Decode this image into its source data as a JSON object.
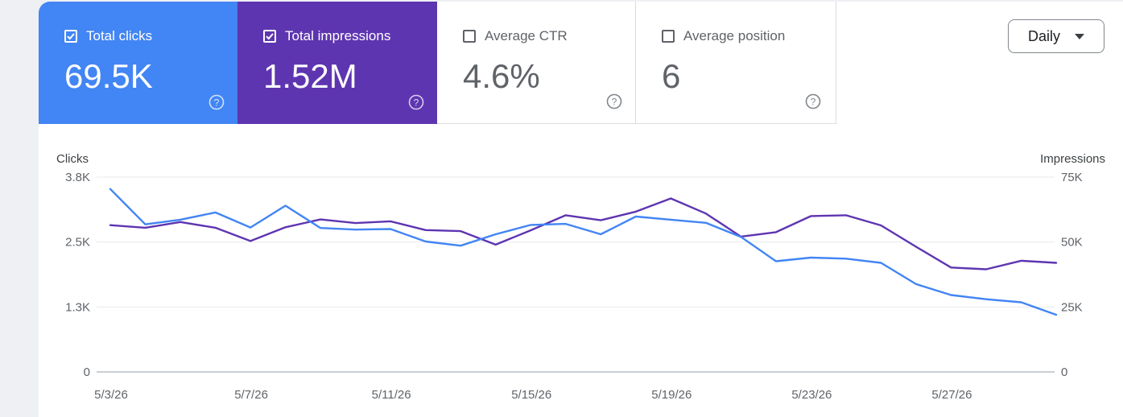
{
  "metrics": [
    {
      "label": "Total clicks",
      "value": "69.5K",
      "checked": true,
      "color": "#4285f4"
    },
    {
      "label": "Total impressions",
      "value": "1.52M",
      "checked": true,
      "color": "#5e35b1"
    },
    {
      "label": "Average CTR",
      "value": "4.6%",
      "checked": false,
      "color": "#ffffff"
    },
    {
      "label": "Average position",
      "value": "6",
      "checked": false,
      "color": "#ffffff"
    }
  ],
  "granularity": {
    "selected": "Daily"
  },
  "chart_data": {
    "type": "line",
    "x": [
      "5/3/26",
      "5/4/26",
      "5/5/26",
      "5/6/26",
      "5/7/26",
      "5/8/26",
      "5/9/26",
      "5/10/26",
      "5/11/26",
      "5/12/26",
      "5/13/26",
      "5/14/26",
      "5/15/26",
      "5/16/26",
      "5/17/26",
      "5/18/26",
      "5/19/26",
      "5/20/26",
      "5/21/26",
      "5/22/26",
      "5/23/26",
      "5/24/26",
      "5/25/26",
      "5/26/26",
      "5/27/26",
      "5/28/26",
      "5/29/26",
      "5/30/26"
    ],
    "x_tick_labels": [
      "5/3/26",
      "5/7/26",
      "5/11/26",
      "5/15/26",
      "5/19/26",
      "5/23/26",
      "5/27/26"
    ],
    "left_axis": {
      "title": "Clicks",
      "ticks": [
        "0",
        "1.3K",
        "2.5K",
        "3.8K"
      ],
      "range": [
        0,
        3750
      ]
    },
    "right_axis": {
      "title": "Impressions",
      "ticks": [
        "0",
        "25K",
        "50K",
        "75K"
      ],
      "range": [
        0,
        75000
      ]
    },
    "grid": true,
    "series": [
      {
        "name": "Total clicks",
        "axis": "left",
        "color": "#4285f4",
        "values": [
          3520,
          2840,
          2930,
          3070,
          2780,
          3200,
          2770,
          2740,
          2750,
          2510,
          2430,
          2650,
          2830,
          2850,
          2650,
          2990,
          2930,
          2870,
          2600,
          2130,
          2200,
          2180,
          2100,
          1690,
          1480,
          1400,
          1340,
          1100
        ]
      },
      {
        "name": "Total impressions",
        "axis": "left-scaled-right",
        "color": "#5e35b1",
        "values": [
          56500,
          55500,
          57700,
          55500,
          50400,
          55700,
          58700,
          57300,
          58000,
          54600,
          54200,
          49000,
          54500,
          60300,
          58400,
          61700,
          66800,
          61000,
          52100,
          53800,
          60000,
          60300,
          56400,
          48200,
          40200,
          39500,
          42800,
          42000
        ]
      }
    ]
  }
}
